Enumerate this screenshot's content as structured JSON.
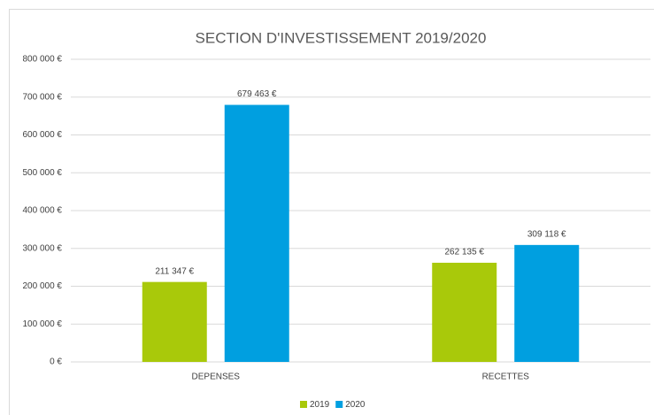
{
  "chart_data": {
    "type": "bar",
    "title": "SECTION D'INVESTISSEMENT 2019/2020",
    "categories": [
      "DEPENSES",
      "RECETTES"
    ],
    "series": [
      {
        "name": "2019",
        "color": "#a9c90a",
        "values": [
          211347,
          262135
        ],
        "value_labels": [
          "211 347 €",
          "262 135 €"
        ]
      },
      {
        "name": "2020",
        "color": "#009fe0",
        "values": [
          679463,
          309118
        ],
        "value_labels": [
          "679 463 €",
          "309 118 €"
        ]
      }
    ],
    "ylim": [
      0,
      800000
    ],
    "yticks": [
      {
        "value": 0,
        "label": "0 €"
      },
      {
        "value": 100000,
        "label": "100 000 €"
      },
      {
        "value": 200000,
        "label": "200 000 €"
      },
      {
        "value": 300000,
        "label": "300 000 €"
      },
      {
        "value": 400000,
        "label": "400 000 €"
      },
      {
        "value": 500000,
        "label": "500 000 €"
      },
      {
        "value": 600000,
        "label": "600 000 €"
      },
      {
        "value": 700000,
        "label": "700 000 €"
      },
      {
        "value": 800000,
        "label": "800 000 €"
      }
    ],
    "grid": true,
    "legend": "bottom"
  }
}
